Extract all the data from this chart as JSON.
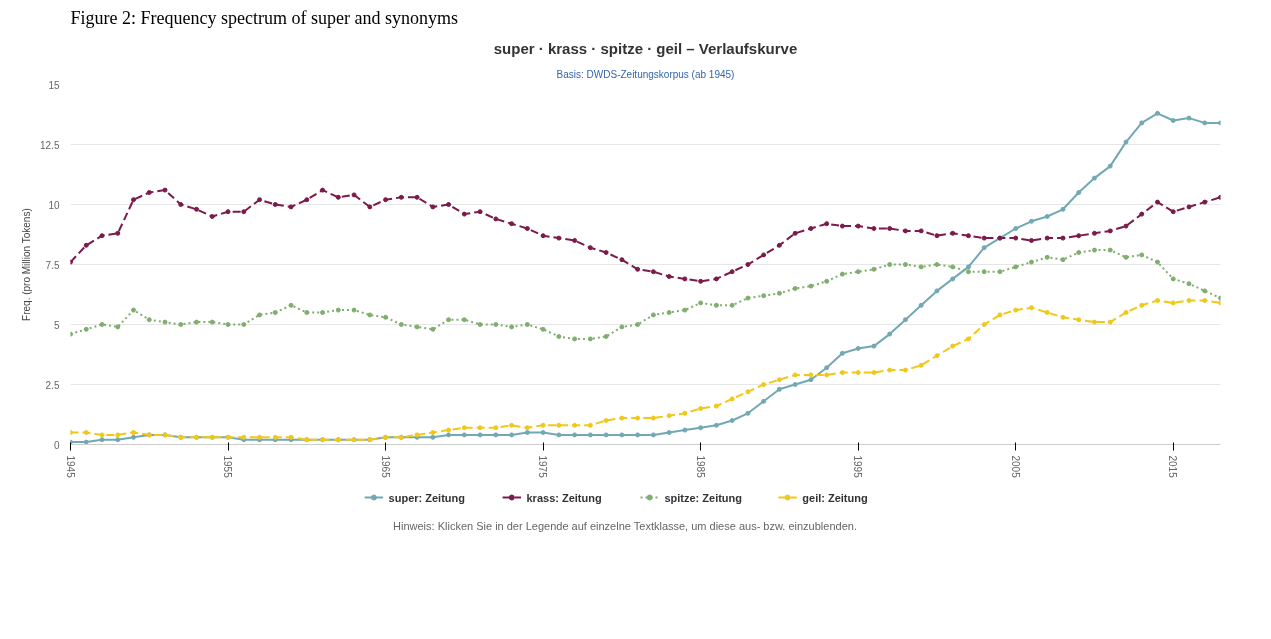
{
  "chart_data": {
    "type": "line",
    "title": "super · krass · spitze · geil – Verlaufskurve",
    "subtitle": "Basis: DWDS-Zeitungskorpus (ab 1945)",
    "ylabel": "Freq. (pro Million Tokens)",
    "annotations": [
      "Figure 2: Frequency spectrum of super and synonyms",
      "Hinweis: Klicken Sie in der Legende auf einzelne Textklasse, um diese aus- bzw. einzublenden."
    ],
    "x": [
      1945,
      1946,
      1947,
      1948,
      1949,
      1950,
      1951,
      1952,
      1953,
      1954,
      1955,
      1956,
      1957,
      1958,
      1959,
      1960,
      1961,
      1962,
      1963,
      1964,
      1965,
      1966,
      1967,
      1968,
      1969,
      1970,
      1971,
      1972,
      1973,
      1974,
      1975,
      1976,
      1977,
      1978,
      1979,
      1980,
      1981,
      1982,
      1983,
      1984,
      1985,
      1986,
      1987,
      1988,
      1989,
      1990,
      1991,
      1992,
      1993,
      1994,
      1995,
      1996,
      1997,
      1998,
      1999,
      2000,
      2001,
      2002,
      2003,
      2004,
      2005,
      2006,
      2007,
      2008,
      2009,
      2010,
      2011,
      2012,
      2013,
      2014,
      2015,
      2016,
      2017,
      2018
    ],
    "xlim": [
      1945,
      2018
    ],
    "xticks": [
      1945,
      1955,
      1965,
      1975,
      1985,
      1995,
      2005,
      2015
    ],
    "ylim": [
      0,
      15
    ],
    "yticks": [
      0,
      2.5,
      5,
      7.5,
      10,
      12.5,
      15
    ],
    "grid": "y",
    "legend": "bottom",
    "marker": "circle",
    "series": [
      {
        "name": "super: Zeitung",
        "color": "#72a8b4",
        "line_style": "solid",
        "values": [
          0.1,
          0.1,
          0.2,
          0.2,
          0.3,
          0.4,
          0.4,
          0.3,
          0.3,
          0.3,
          0.3,
          0.2,
          0.2,
          0.2,
          0.2,
          0.2,
          0.2,
          0.2,
          0.2,
          0.2,
          0.3,
          0.3,
          0.3,
          0.3,
          0.4,
          0.4,
          0.4,
          0.4,
          0.4,
          0.5,
          0.5,
          0.4,
          0.4,
          0.4,
          0.4,
          0.4,
          0.4,
          0.4,
          0.5,
          0.6,
          0.7,
          0.8,
          1.0,
          1.3,
          1.8,
          2.3,
          2.5,
          2.7,
          3.2,
          3.8,
          4.0,
          4.1,
          4.6,
          5.2,
          5.8,
          6.4,
          6.9,
          7.4,
          8.2,
          8.6,
          9.0,
          9.3,
          9.5,
          9.8,
          10.5,
          11.1,
          11.6,
          12.6,
          13.4,
          13.8,
          13.5,
          13.6,
          13.4,
          13.4
        ]
      },
      {
        "name": "krass: Zeitung",
        "color": "#7b1a4b",
        "line_style": "dashed",
        "values": [
          7.6,
          8.3,
          8.7,
          8.8,
          10.2,
          10.5,
          10.6,
          10.0,
          9.8,
          9.5,
          9.7,
          9.7,
          10.2,
          10.0,
          9.9,
          10.2,
          10.6,
          10.3,
          10.4,
          9.9,
          10.2,
          10.3,
          10.3,
          9.9,
          10.0,
          9.6,
          9.7,
          9.4,
          9.2,
          9.0,
          8.7,
          8.6,
          8.5,
          8.2,
          8.0,
          7.7,
          7.3,
          7.2,
          7.0,
          6.9,
          6.8,
          6.9,
          7.2,
          7.5,
          7.9,
          8.3,
          8.8,
          9.0,
          9.2,
          9.1,
          9.1,
          9.0,
          9.0,
          8.9,
          8.9,
          8.7,
          8.8,
          8.7,
          8.6,
          8.6,
          8.6,
          8.5,
          8.6,
          8.6,
          8.7,
          8.8,
          8.9,
          9.1,
          9.6,
          10.1,
          9.7,
          9.9,
          10.1,
          10.3
        ]
      },
      {
        "name": "spitze: Zeitung",
        "color": "#7fae6e",
        "line_style": "dotted",
        "values": [
          4.6,
          4.8,
          5.0,
          4.9,
          5.6,
          5.2,
          5.1,
          5.0,
          5.1,
          5.1,
          5.0,
          5.0,
          5.4,
          5.5,
          5.8,
          5.5,
          5.5,
          5.6,
          5.6,
          5.4,
          5.3,
          5.0,
          4.9,
          4.8,
          5.2,
          5.2,
          5.0,
          5.0,
          4.9,
          5.0,
          4.8,
          4.5,
          4.4,
          4.4,
          4.5,
          4.9,
          5.0,
          5.4,
          5.5,
          5.6,
          5.9,
          5.8,
          5.8,
          6.1,
          6.2,
          6.3,
          6.5,
          6.6,
          6.8,
          7.1,
          7.2,
          7.3,
          7.5,
          7.5,
          7.4,
          7.5,
          7.4,
          7.2,
          7.2,
          7.2,
          7.4,
          7.6,
          7.8,
          7.7,
          8.0,
          8.1,
          8.1,
          7.8,
          7.9,
          7.6,
          6.9,
          6.7,
          6.4,
          6.1
        ]
      },
      {
        "name": "geil: Zeitung",
        "color": "#f2c818",
        "line_style": "dashed",
        "values": [
          0.5,
          0.5,
          0.4,
          0.4,
          0.5,
          0.4,
          0.4,
          0.3,
          0.3,
          0.3,
          0.3,
          0.3,
          0.3,
          0.3,
          0.3,
          0.2,
          0.2,
          0.2,
          0.2,
          0.2,
          0.3,
          0.3,
          0.4,
          0.5,
          0.6,
          0.7,
          0.7,
          0.7,
          0.8,
          0.7,
          0.8,
          0.8,
          0.8,
          0.8,
          1.0,
          1.1,
          1.1,
          1.1,
          1.2,
          1.3,
          1.5,
          1.6,
          1.9,
          2.2,
          2.5,
          2.7,
          2.9,
          2.9,
          2.9,
          3.0,
          3.0,
          3.0,
          3.1,
          3.1,
          3.3,
          3.7,
          4.1,
          4.4,
          5.0,
          5.4,
          5.6,
          5.7,
          5.5,
          5.3,
          5.2,
          5.1,
          5.1,
          5.5,
          5.8,
          6.0,
          5.9,
          6.0,
          6.0,
          5.9
        ]
      }
    ]
  }
}
